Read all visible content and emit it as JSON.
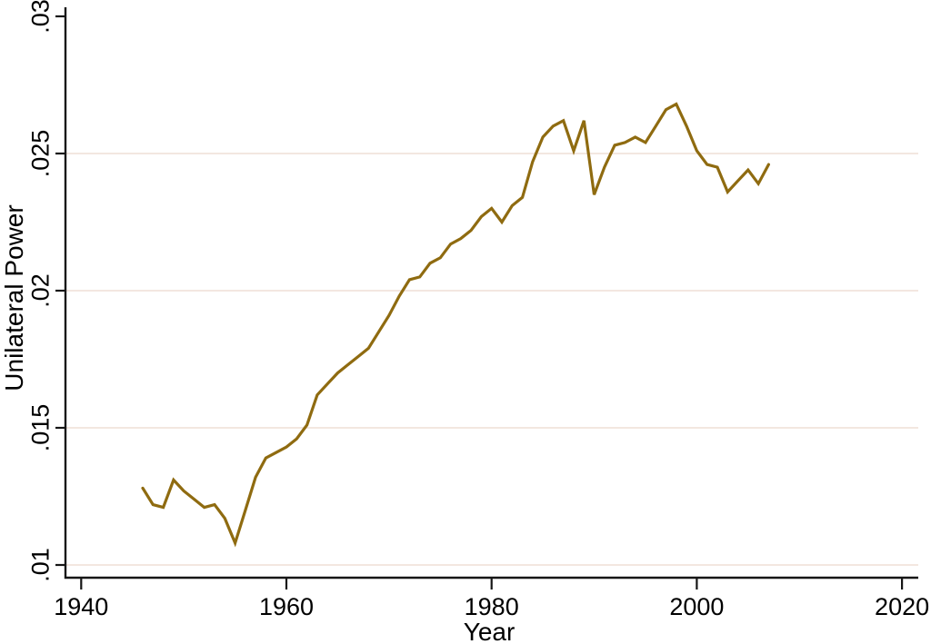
{
  "figure": {
    "background": "#ffffff"
  },
  "chart_data": {
    "type": "line",
    "title": "",
    "xlabel": "Year",
    "ylabel": "Unilateral Power",
    "x_ticks": [
      1940,
      1960,
      1980,
      2000,
      2020
    ],
    "x_tick_labels": [
      "1940",
      "1960",
      "1980",
      "2000",
      "2020"
    ],
    "y_ticks": [
      0.03,
      0.025,
      0.02,
      0.015,
      0.01
    ],
    "y_tick_labels": [
      ".03",
      ".025",
      ".02",
      ".015",
      ".01"
    ],
    "grid_y_values": [
      0.025,
      0.02,
      0.015,
      0.01
    ],
    "xlim": [
      1938.5,
      2021.6
    ],
    "ylim": [
      0.0095,
      0.0303
    ],
    "grid": true,
    "legend_position": "none",
    "line_color": "#8f6b10",
    "grid_color": "#f3e7e0",
    "axis_color": "#161616",
    "series": [
      {
        "name": "Unilateral Power",
        "x": [
          1946,
          1947,
          1948,
          1949,
          1950,
          1951,
          1952,
          1953,
          1954,
          1955,
          1956,
          1957,
          1958,
          1959,
          1960,
          1961,
          1962,
          1963,
          1964,
          1965,
          1966,
          1967,
          1968,
          1969,
          1970,
          1971,
          1972,
          1973,
          1974,
          1975,
          1976,
          1977,
          1978,
          1979,
          1980,
          1981,
          1982,
          1983,
          1984,
          1985,
          1986,
          1987,
          1988,
          1989,
          1990,
          1991,
          1992,
          1993,
          1994,
          1995,
          1996,
          1997,
          1998,
          1999,
          2000,
          2001,
          2002,
          2003,
          2004,
          2005,
          2006,
          2007
        ],
        "y": [
          0.0128,
          0.0122,
          0.0121,
          0.0131,
          0.0127,
          0.0124,
          0.0121,
          0.0122,
          0.0117,
          0.0108,
          0.012,
          0.0132,
          0.0139,
          0.0141,
          0.0143,
          0.0146,
          0.0151,
          0.0162,
          0.0166,
          0.017,
          0.0173,
          0.0176,
          0.0179,
          0.0185,
          0.0191,
          0.0198,
          0.0204,
          0.0205,
          0.021,
          0.0212,
          0.0217,
          0.0219,
          0.0222,
          0.0227,
          0.023,
          0.0225,
          0.0231,
          0.0234,
          0.0247,
          0.0256,
          0.026,
          0.0262,
          0.0251,
          0.0262,
          0.0235,
          0.0245,
          0.0253,
          0.0254,
          0.0256,
          0.0254,
          0.026,
          0.0266,
          0.0268,
          0.026,
          0.0251,
          0.0246,
          0.0245,
          0.0236,
          0.024,
          0.0244,
          0.0239,
          0.0246
        ]
      }
    ]
  }
}
